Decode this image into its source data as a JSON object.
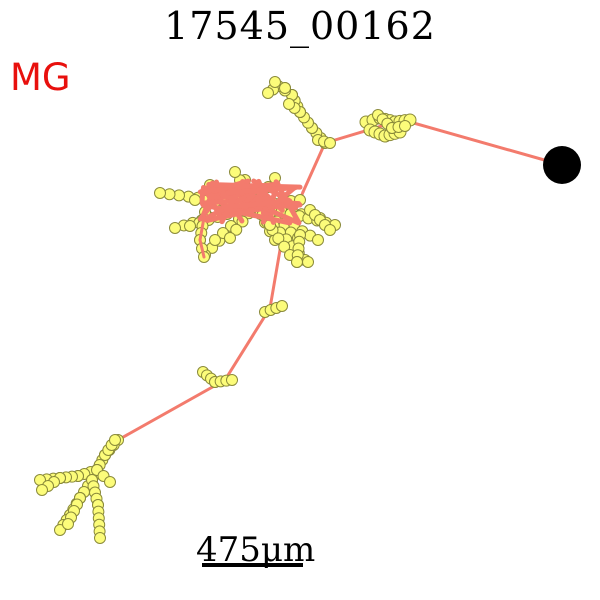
{
  "figure": {
    "title": "17545_00162",
    "tag": "MG",
    "scale_bar_label": "475μm"
  },
  "colors": {
    "neurite": "#f37b6d",
    "node_fill": "#fcfc7a",
    "node_stroke": "#8a8a3a",
    "soma": "#000000",
    "tag": "#e8100d"
  }
}
